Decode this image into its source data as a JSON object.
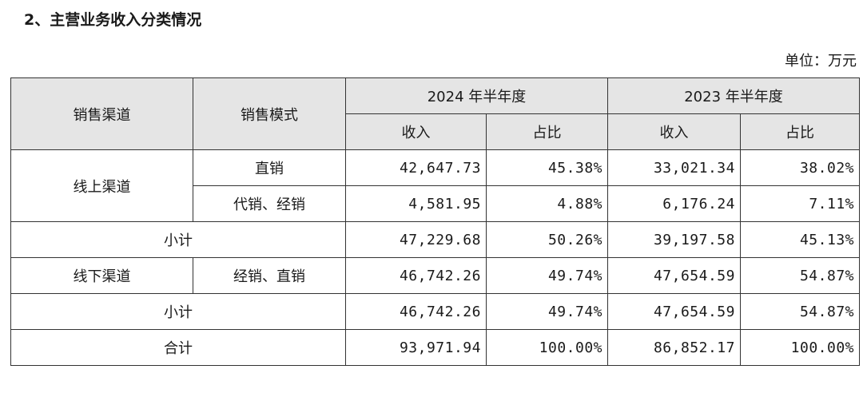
{
  "title": "2、主营业务收入分类情况",
  "unit": "单位：万元",
  "header": {
    "channel": "销售渠道",
    "mode": "销售模式",
    "period_2024": "2024 年半年度",
    "period_2023": "2023 年半年度",
    "revenue": "收入",
    "share": "占比"
  },
  "rows": {
    "online_channel": "线上渠道",
    "online_direct": {
      "mode": "直销",
      "rev_2024": "42,647.73",
      "share_2024": "45.38%",
      "rev_2023": "33,021.34",
      "share_2023": "38.02%"
    },
    "online_agent": {
      "mode": "代销、经销",
      "rev_2024": "4,581.95",
      "share_2024": "4.88%",
      "rev_2023": "6,176.24",
      "share_2023": "7.11%"
    },
    "online_subtotal": {
      "label": "小计",
      "rev_2024": "47,229.68",
      "share_2024": "50.26%",
      "rev_2023": "39,197.58",
      "share_2023": "45.13%"
    },
    "offline_channel": "线下渠道",
    "offline": {
      "mode": "经销、直销",
      "rev_2024": "46,742.26",
      "share_2024": "49.74%",
      "rev_2023": "47,654.59",
      "share_2023": "54.87%"
    },
    "offline_subtotal": {
      "label": "小计",
      "rev_2024": "46,742.26",
      "share_2024": "49.74%",
      "rev_2023": "47,654.59",
      "share_2023": "54.87%"
    },
    "total": {
      "label": "合计",
      "rev_2024": "93,971.94",
      "share_2024": "100.00%",
      "rev_2023": "86,852.17",
      "share_2023": "100.00%"
    }
  }
}
